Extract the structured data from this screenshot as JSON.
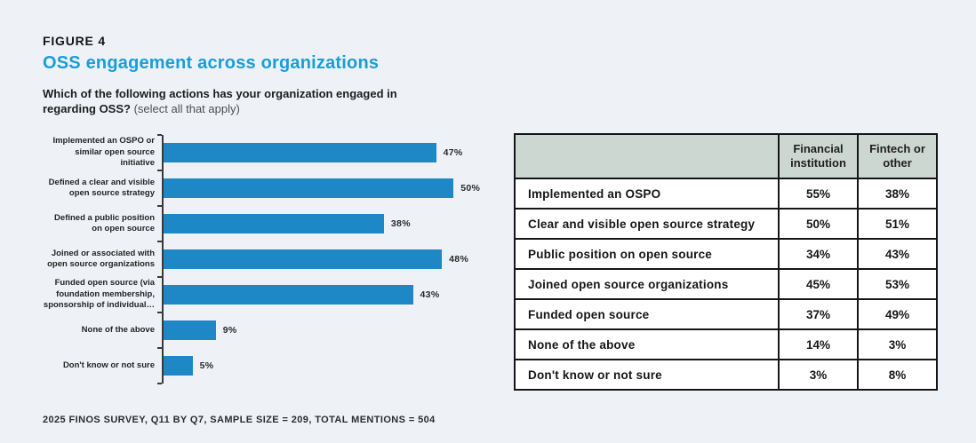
{
  "figure_label": "FIGURE 4",
  "title": "OSS engagement across organizations",
  "question": {
    "bold": "Which of the following actions has your organization engaged in regarding OSS?",
    "note": " (select all that apply)"
  },
  "footnote": "2025 FINOS SURVEY, Q11 BY Q7, SAMPLE SIZE = 209, TOTAL MENTIONS = 504",
  "colors": {
    "background": "#eef1f6",
    "title_blue": "#189ed9",
    "bar_blue": "#1e87c5",
    "table_header_bg": "#ccd7d1",
    "table_border": "#161616",
    "axis": "#3a3a3a"
  },
  "chart_data": [
    {
      "type": "bar",
      "orientation": "horizontal",
      "categories": [
        "Implemented an OSPO or similar open source initiative",
        "Defined a clear and visible open source strategy",
        "Defined a public position on open source",
        "Joined or associated with open source organizations",
        "Funded open source (via foundation membership, sponsorship of individual…",
        "None of the above",
        "Don't know or not sure"
      ],
      "values": [
        47,
        50,
        38,
        48,
        43,
        9,
        5
      ],
      "value_labels": [
        "47%",
        "50%",
        "38%",
        "48%",
        "43%",
        "9%",
        "5%"
      ],
      "unit": "%",
      "xlim": [
        0,
        61
      ],
      "grid": false,
      "legend": false,
      "bar_color": "#1e87c5"
    },
    {
      "type": "table",
      "columns": [
        "",
        "Financial institution",
        "Fintech or other"
      ],
      "rows": [
        [
          "Implemented an OSPO",
          "55%",
          "38%"
        ],
        [
          "Clear and visible open source strategy",
          "50%",
          "51%"
        ],
        [
          "Public position on open source",
          "34%",
          "43%"
        ],
        [
          "Joined open source organizations",
          "45%",
          "53%"
        ],
        [
          "Funded open source",
          "37%",
          "49%"
        ],
        [
          "None of the above",
          "14%",
          "3%"
        ],
        [
          "Don't know or not sure",
          "3%",
          "8%"
        ]
      ]
    }
  ]
}
